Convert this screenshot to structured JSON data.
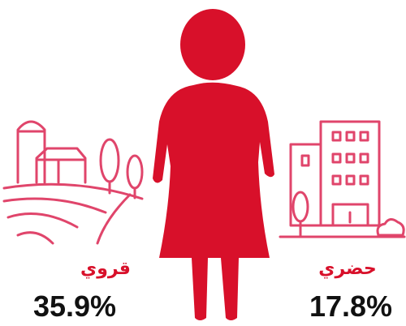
{
  "items": [
    {
      "label": "قروي",
      "value": "35.9%"
    },
    {
      "label": "حضري",
      "value": "17.8%"
    }
  ]
}
